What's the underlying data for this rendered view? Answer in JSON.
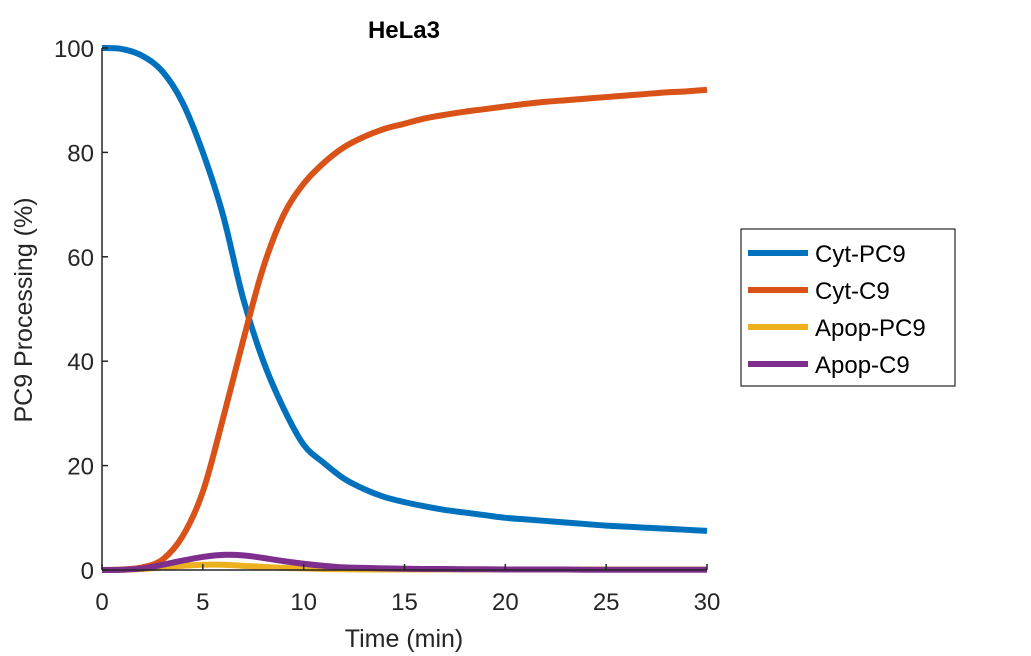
{
  "chart_data": {
    "type": "line",
    "title": "HeLa3",
    "xlabel": "Time (min)",
    "ylabel": "PC9 Processing (%)",
    "xlim": [
      0,
      30
    ],
    "ylim": [
      0,
      100
    ],
    "xticks": [
      0,
      5,
      10,
      15,
      20,
      25,
      30
    ],
    "yticks": [
      0,
      20,
      40,
      60,
      80,
      100
    ],
    "grid": false,
    "legend_position": "right",
    "x": [
      0,
      1,
      2,
      3,
      4,
      5,
      6,
      7,
      8,
      9,
      10,
      11,
      12,
      13,
      14,
      15,
      16,
      17,
      18,
      19,
      20,
      21,
      22,
      23,
      24,
      25,
      26,
      27,
      28,
      29,
      30
    ],
    "series": [
      {
        "name": "Cyt-PC9",
        "color": "#0072BD",
        "values": [
          100,
          99.8,
          98.5,
          95.5,
          89.5,
          80,
          68,
          52,
          40,
          31,
          24,
          20.5,
          17.5,
          15.5,
          14,
          13,
          12.2,
          11.5,
          11,
          10.5,
          10,
          9.7,
          9.4,
          9.1,
          8.8,
          8.5,
          8.3,
          8.1,
          7.9,
          7.7,
          7.5
        ]
      },
      {
        "name": "Cyt-C9",
        "color": "#D95319",
        "values": [
          0,
          0.1,
          0.5,
          2,
          6.5,
          15,
          29,
          44,
          58,
          68,
          74,
          78,
          81,
          83,
          84.5,
          85.5,
          86.5,
          87.2,
          87.8,
          88.3,
          88.8,
          89.3,
          89.7,
          90,
          90.3,
          90.6,
          90.9,
          91.2,
          91.5,
          91.7,
          92
        ]
      },
      {
        "name": "Apop-PC9",
        "color": "#EDB120",
        "values": [
          0,
          0.05,
          0.2,
          0.5,
          0.8,
          1.0,
          1.0,
          0.8,
          0.6,
          0.4,
          0.3,
          0.2,
          0.15,
          0.1,
          0.1,
          0.1,
          0.1,
          0.1,
          0.1,
          0.1,
          0.1,
          0.1,
          0.1,
          0.1,
          0.1,
          0.1,
          0.1,
          0.1,
          0.1,
          0.1,
          0.1
        ]
      },
      {
        "name": "Apop-C9",
        "color": "#7E2F8E",
        "values": [
          0,
          0.05,
          0.3,
          1.0,
          1.8,
          2.5,
          2.9,
          2.8,
          2.3,
          1.7,
          1.2,
          0.8,
          0.5,
          0.4,
          0.3,
          0.25,
          0.2,
          0.2,
          0.15,
          0.15,
          0.1,
          0.1,
          0.1,
          0.1,
          0.05,
          0.05,
          0.05,
          0.05,
          0.05,
          0.05,
          0.05
        ]
      }
    ]
  }
}
